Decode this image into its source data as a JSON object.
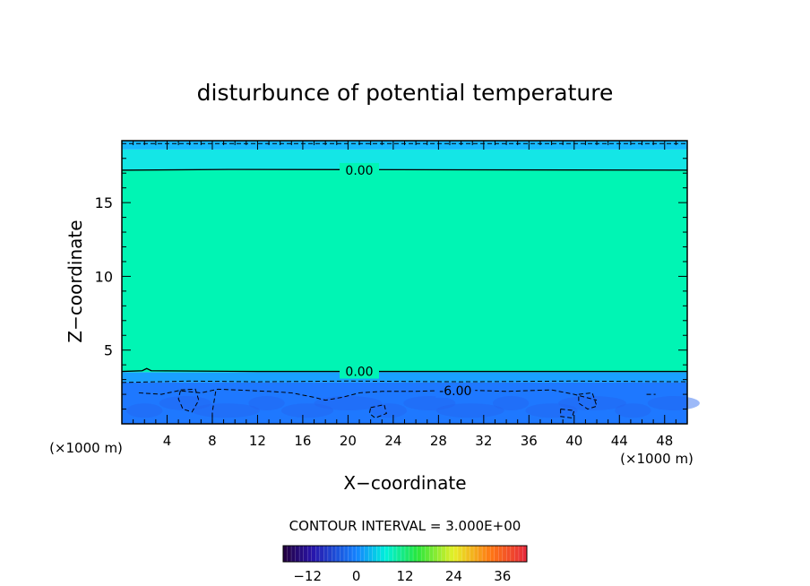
{
  "chart_data": {
    "type": "heatmap",
    "title": "disturbunce of potential temperature",
    "xlabel": "X−coordinate",
    "ylabel": "Z−coordinate",
    "x_unit_left": "(×1000 m)",
    "x_unit_right": "(×1000 m)",
    "xlim": [
      0,
      50
    ],
    "ylim": [
      0,
      19.2
    ],
    "x_ticks": [
      4,
      8,
      12,
      16,
      20,
      24,
      28,
      32,
      36,
      40,
      44,
      48
    ],
    "y_ticks": [
      5,
      10,
      15
    ],
    "contour_interval_text": "CONTOUR INTERVAL = 3.000E+00",
    "colorbar": {
      "ticks": [
        -12,
        0,
        12,
        24,
        36
      ],
      "tick_labels": [
        "−12",
        "0",
        "12",
        "24",
        "36"
      ],
      "range": [
        -18,
        42
      ]
    },
    "bands": [
      {
        "z": [
          0,
          2.8
        ],
        "value": -9,
        "color": "#1e78ff"
      },
      {
        "z": [
          2.8,
          3.5
        ],
        "value": -6,
        "color": "#1aa0ff"
      },
      {
        "z": [
          3.5,
          17.2
        ],
        "value": 0,
        "color": "#00f5b4"
      },
      {
        "z": [
          17.2,
          18.6
        ],
        "value": -3,
        "color": "#14e6e6"
      },
      {
        "z": [
          18.6,
          19.2
        ],
        "value": -6,
        "color": "#18b9ff"
      }
    ],
    "contours": [
      {
        "label": "0.00",
        "level": 0,
        "style": "solid",
        "points": [
          [
            0,
            17.2
          ],
          [
            10,
            17.25
          ],
          [
            50,
            17.2
          ]
        ]
      },
      {
        "label": "0.00",
        "level": 0,
        "style": "solid",
        "points": [
          [
            0,
            3.55
          ],
          [
            1.8,
            3.6
          ],
          [
            2.2,
            3.75
          ],
          [
            2.6,
            3.6
          ],
          [
            12,
            3.55
          ],
          [
            50,
            3.55
          ]
        ]
      },
      {
        "label": "",
        "level": -3,
        "style": "dashed",
        "points": [
          [
            0,
            19.0
          ],
          [
            50,
            19.0
          ]
        ]
      },
      {
        "label": "",
        "level": -3,
        "style": "dashed",
        "points": [
          [
            0,
            2.8
          ],
          [
            6,
            2.9
          ],
          [
            12,
            2.85
          ],
          [
            20,
            2.9
          ],
          [
            30,
            2.85
          ],
          [
            40,
            2.9
          ],
          [
            50,
            2.85
          ]
        ]
      },
      {
        "label": "-6.00",
        "level": -6,
        "style": "dashed",
        "points": [
          [
            1.5,
            2.1
          ],
          [
            3.5,
            2.0
          ],
          [
            5,
            2.25
          ],
          [
            7,
            2.1
          ],
          [
            8.5,
            2.35
          ],
          [
            10,
            2.3
          ],
          [
            13,
            2.2
          ],
          [
            15,
            2.1
          ],
          [
            17,
            1.8
          ],
          [
            18,
            1.6
          ],
          [
            19.5,
            1.8
          ],
          [
            21,
            2.1
          ],
          [
            23,
            2.2
          ],
          [
            26,
            2.2
          ],
          [
            30,
            2.3
          ],
          [
            34,
            2.2
          ],
          [
            38,
            2.3
          ],
          [
            40,
            2.0
          ],
          [
            42,
            1.6
          ]
        ]
      },
      {
        "label": "",
        "level": -6,
        "style": "dashed",
        "points": [
          [
            5.2,
            2.3
          ],
          [
            6.5,
            2.35
          ],
          [
            6.8,
            1.6
          ],
          [
            6.2,
            0.8
          ],
          [
            5.4,
            1.0
          ],
          [
            5.0,
            1.7
          ],
          [
            5.2,
            2.3
          ]
        ]
      },
      {
        "label": "",
        "level": -6,
        "style": "dashed",
        "points": [
          [
            8.3,
            2.2
          ],
          [
            8.0,
            0.8
          ],
          [
            8.0,
            0
          ]
        ]
      },
      {
        "label": "",
        "level": -6,
        "style": "dashed",
        "points": [
          [
            22.0,
            1.1
          ],
          [
            23.2,
            1.3
          ],
          [
            23.4,
            0.7
          ],
          [
            22.4,
            0.4
          ],
          [
            21.9,
            0.7
          ],
          [
            22.0,
            1.1
          ]
        ]
      },
      {
        "label": "",
        "level": -6,
        "style": "dashed",
        "points": [
          [
            38.8,
            1.0
          ],
          [
            40.0,
            0.9
          ],
          [
            39.8,
            0.4
          ],
          [
            38.8,
            0.5
          ],
          [
            38.8,
            1.0
          ]
        ]
      },
      {
        "label": "",
        "level": -6,
        "style": "dashed",
        "points": [
          [
            40.4,
            2.0
          ],
          [
            41.6,
            2.1
          ],
          [
            42.0,
            1.2
          ],
          [
            41.2,
            1.0
          ],
          [
            40.4,
            1.4
          ],
          [
            40.4,
            2.0
          ]
        ]
      },
      {
        "label": "",
        "level": -6,
        "style": "dashed",
        "points": [
          [
            46.4,
            2.0
          ],
          [
            47.2,
            2.0
          ]
        ]
      }
    ]
  }
}
